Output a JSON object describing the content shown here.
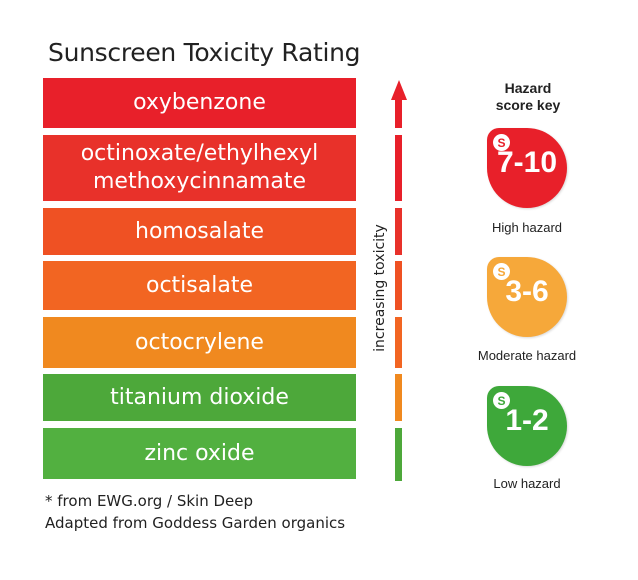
{
  "title": "Sunscreen Toxicity Rating",
  "ingredients": [
    {
      "lines": [
        "oxybenzone"
      ],
      "color": "#e8202a"
    },
    {
      "lines": [
        "octinoxate/ethylhexyl",
        "methoxycinnamate"
      ],
      "color": "#e8312a"
    },
    {
      "lines": [
        "homosalate"
      ],
      "color": "#ef5123"
    },
    {
      "lines": [
        "octisalate"
      ],
      "color": "#f26522"
    },
    {
      "lines": [
        "octocrylene"
      ],
      "color": "#f0891f"
    },
    {
      "lines": [
        "titanium dioxide"
      ],
      "color": "#4da83a"
    },
    {
      "lines": [
        "zinc oxide"
      ],
      "color": "#52b040"
    }
  ],
  "axis_label": "increasing toxicity",
  "key": {
    "title_line1": "Hazard",
    "title_line2": "score key",
    "items": [
      {
        "range": "7-10",
        "label": "High hazard",
        "color": "#e8202a",
        "icon_color": "#e8202a"
      },
      {
        "range": "3-6",
        "label": "Moderate hazard",
        "color": "#f6a83a",
        "icon_color": "#f6a83a"
      },
      {
        "range": "1-2",
        "label": "Low hazard",
        "color": "#3ea83a",
        "icon_color": "#3ea83a"
      }
    ],
    "icon_letter": "S"
  },
  "footnotes": [
    "* from EWG.org / Skin Deep",
    "Adapted from Goddess Garden organics"
  ]
}
